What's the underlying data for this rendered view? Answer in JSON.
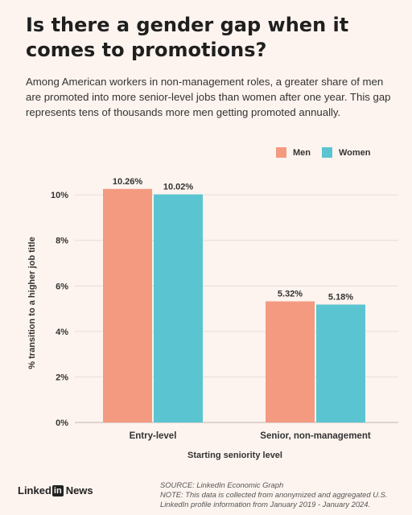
{
  "title": "Is there a gender gap when it comes to promotions?",
  "subtitle": "Among American workers in non-management roles, a greater share of men are promoted into more senior-level jobs than women after one year. This gap represents tens of thousands more men getting promoted annually.",
  "legend": [
    {
      "name": "Men",
      "color": "#f49a81"
    },
    {
      "name": "Women",
      "color": "#5bc4d1"
    }
  ],
  "footer": {
    "brand_pre": "Linked",
    "brand_in": "in",
    "brand_post": "News",
    "source": "SOURCE: LinkedIn Economic Graph",
    "note": "NOTE: This data is collected from anonymized and aggregated U.S. LinkedIn profile information from January 2019 - January 2024."
  },
  "chart_data": {
    "type": "bar",
    "title": "",
    "xlabel": "Starting seniority level",
    "ylabel": "% transition to a higher job title",
    "ylim": [
      0,
      10.5
    ],
    "yticks": [
      0,
      2,
      4,
      6,
      8,
      10
    ],
    "ytick_labels": [
      "0%",
      "2%",
      "4%",
      "6%",
      "8%",
      "10%"
    ],
    "categories": [
      "Entry-level",
      "Senior, non-management"
    ],
    "series": [
      {
        "name": "Men",
        "color": "#f49a81",
        "values": [
          10.26,
          5.32
        ],
        "labels": [
          "10.26%",
          "5.32%"
        ]
      },
      {
        "name": "Women",
        "color": "#5bc4d1",
        "values": [
          10.02,
          5.18
        ],
        "labels": [
          "10.02%",
          "5.18%"
        ]
      }
    ],
    "grid": true,
    "legend": "top-right"
  }
}
